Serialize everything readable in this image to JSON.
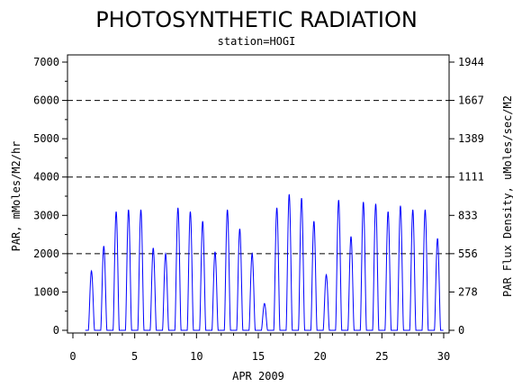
{
  "chart_data": {
    "type": "line",
    "title": "PHOTOSYNTHETIC RADIATION",
    "subtitle": "station=HOGI",
    "xlabel": "APR 2009",
    "ylabel_left": "PAR, mMoles/M2/hr",
    "ylabel_right": "PAR Flux Density, uMoles/sec/M2",
    "xlim": [
      0,
      30
    ],
    "ylim": [
      0,
      7000
    ],
    "x_ticks": [
      0,
      5,
      10,
      15,
      20,
      25,
      30
    ],
    "y_ticks_left": [
      0,
      1000,
      2000,
      3000,
      4000,
      5000,
      6000,
      7000
    ],
    "y_ticks_right": [
      {
        "value": 0,
        "label": "0"
      },
      {
        "value": 1000,
        "label": "278"
      },
      {
        "value": 2000,
        "label": "556"
      },
      {
        "value": 3000,
        "label": "833"
      },
      {
        "value": 4000,
        "label": "1111"
      },
      {
        "value": 5000,
        "label": "1389"
      },
      {
        "value": 6000,
        "label": "1667"
      },
      {
        "value": 7000,
        "label": "1944"
      }
    ],
    "dashed_gridlines_y": [
      2000,
      4000,
      6000
    ],
    "series_color": "#0000ff",
    "daily_peaks": [
      {
        "day": 1,
        "peak": 1550
      },
      {
        "day": 2,
        "peak": 2200
      },
      {
        "day": 3,
        "peak": 3100
      },
      {
        "day": 4,
        "peak": 3150
      },
      {
        "day": 5,
        "peak": 3150
      },
      {
        "day": 6,
        "peak": 2150
      },
      {
        "day": 7,
        "peak": 2000
      },
      {
        "day": 8,
        "peak": 3200
      },
      {
        "day": 9,
        "peak": 3100
      },
      {
        "day": 10,
        "peak": 2850
      },
      {
        "day": 11,
        "peak": 2050
      },
      {
        "day": 12,
        "peak": 3150
      },
      {
        "day": 13,
        "peak": 2650
      },
      {
        "day": 14,
        "peak": 2000
      },
      {
        "day": 15,
        "peak": 700
      },
      {
        "day": 16,
        "peak": 3200
      },
      {
        "day": 17,
        "peak": 3550
      },
      {
        "day": 18,
        "peak": 3450
      },
      {
        "day": 19,
        "peak": 2850
      },
      {
        "day": 20,
        "peak": 1450
      },
      {
        "day": 21,
        "peak": 3400
      },
      {
        "day": 22,
        "peak": 2450
      },
      {
        "day": 23,
        "peak": 3350
      },
      {
        "day": 24,
        "peak": 3300
      },
      {
        "day": 25,
        "peak": 3100
      },
      {
        "day": 26,
        "peak": 3250
      },
      {
        "day": 27,
        "peak": 3150
      },
      {
        "day": 28,
        "peak": 3150
      },
      {
        "day": 29,
        "peak": 2400
      }
    ]
  }
}
